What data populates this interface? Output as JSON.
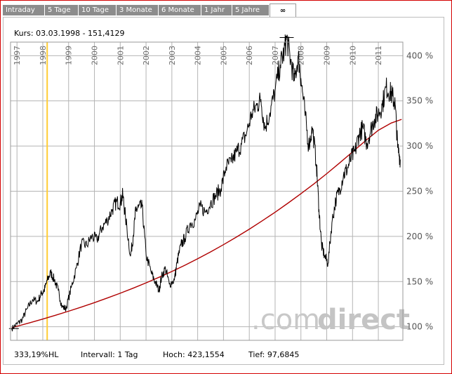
{
  "tabs": [
    {
      "label": "Intraday",
      "active": false
    },
    {
      "label": "5 Tage",
      "active": false
    },
    {
      "label": "10 Tage",
      "active": false
    },
    {
      "label": "3 Monate",
      "active": false
    },
    {
      "label": "6 Monate",
      "active": false
    },
    {
      "label": "1 Jahr",
      "active": false
    },
    {
      "label": "5 Jahre",
      "active": false
    },
    {
      "label": "∞",
      "active": true
    }
  ],
  "kurs_label": "Kurs: 03.03.1998 - 151,4129",
  "stats": {
    "performance": "333,19%HL",
    "intervall": "Intervall: 1 Tag",
    "hoch": "Hoch: 423,1554",
    "tief": "Tief: 97,6845"
  },
  "watermark": {
    "part1": ".com",
    "part2": "direct"
  },
  "colors": {
    "price_line": "#000000",
    "trend_line": "#b00000",
    "cursor_line": "#ffcc33",
    "grid": "#b4b4b4",
    "frame": "#d40000",
    "tab_bg": "#8c8c8c",
    "watermark": "#c8c8c8"
  },
  "chart_data": {
    "type": "line",
    "x_unit": "year",
    "year_labels": [
      "1997",
      "1998",
      "1999",
      "2000",
      "2001",
      "2002",
      "2003",
      "2004",
      "2005",
      "2006",
      "2007",
      "2008",
      "2009",
      "2010",
      "2011"
    ],
    "y_ticks": [
      {
        "value": 100,
        "label": "100 %"
      },
      {
        "value": 150,
        "label": "150 %"
      },
      {
        "value": 200,
        "label": "200 %"
      },
      {
        "value": 250,
        "label": "250 %"
      },
      {
        "value": 300,
        "label": "300 %"
      },
      {
        "value": 350,
        "label": "350 %"
      },
      {
        "value": 400,
        "label": "400 %"
      }
    ],
    "xlim": [
      1996.75,
      2011.95
    ],
    "ylim": [
      85,
      415
    ],
    "grid": true,
    "cursor_x": 1998.17,
    "series": [
      {
        "kind": "price",
        "x": [
          1996.8,
          1997.0,
          1997.2,
          1997.4,
          1997.6,
          1997.8,
          1997.95,
          1998.05,
          1998.17,
          1998.3,
          1998.45,
          1998.6,
          1998.75,
          1998.9,
          1999.1,
          1999.3,
          1999.5,
          1999.7,
          1999.9,
          2000.1,
          2000.3,
          2000.5,
          2000.7,
          2000.85,
          2001.0,
          2001.1,
          2001.2,
          2001.4,
          2001.5,
          2001.6,
          2001.7,
          2001.85,
          2002.0,
          2002.2,
          2002.35,
          2002.5,
          2002.6,
          2002.75,
          2002.9,
          2003.1,
          2003.2,
          2003.35,
          2003.5,
          2003.7,
          2003.9,
          2004.1,
          2004.3,
          2004.5,
          2004.7,
          2004.9,
          2005.1,
          2005.3,
          2005.5,
          2005.7,
          2005.9,
          2006.1,
          2006.3,
          2006.45,
          2006.6,
          2006.8,
          2007.0,
          2007.2,
          2007.35,
          2007.45,
          2007.6,
          2007.75,
          2007.9,
          2008.0,
          2008.15,
          2008.3,
          2008.45,
          2008.6,
          2008.7,
          2008.8,
          2008.92,
          2009.05,
          2009.2,
          2009.35,
          2009.5,
          2009.65,
          2009.8,
          2009.95,
          2010.1,
          2010.25,
          2010.4,
          2010.55,
          2010.7,
          2010.85,
          2011.0,
          2011.15,
          2011.3,
          2011.45,
          2011.55,
          2011.65,
          2011.75,
          2011.85
        ],
        "y": [
          98,
          103,
          108,
          120,
          130,
          128,
          137,
          140,
          151,
          160,
          152,
          140,
          122,
          120,
          143,
          165,
          192,
          190,
          200,
          196,
          210,
          218,
          230,
          238,
          237,
          246,
          222,
          178,
          200,
          228,
          232,
          233,
          180,
          160,
          150,
          140,
          155,
          165,
          147,
          152,
          171,
          190,
          198,
          214,
          218,
          233,
          227,
          237,
          245,
          253,
          277,
          282,
          293,
          302,
          315,
          336,
          345,
          352,
          320,
          337,
          361,
          390,
          404,
          420,
          395,
          372,
          400,
          375,
          338,
          300,
          320,
          280,
          230,
          190,
          178,
          170,
          215,
          240,
          252,
          268,
          275,
          287,
          294,
          313,
          320,
          303,
          317,
          330,
          336,
          345,
          365,
          360,
          355,
          346,
          298,
          285
        ]
      },
      {
        "kind": "trend",
        "x": [
          1996.8,
          1997.5,
          1998.0,
          1998.5,
          1999.0,
          1999.5,
          2000.0,
          2000.5,
          2001.0,
          2001.5,
          2002.0,
          2002.5,
          2003.0,
          2003.5,
          2004.0,
          2004.5,
          2005.0,
          2005.5,
          2006.0,
          2006.5,
          2007.0,
          2007.5,
          2008.0,
          2008.5,
          2009.0,
          2009.5,
          2010.0,
          2010.5,
          2011.0,
          2011.5,
          2011.9
        ],
        "y": [
          99,
          104.5,
          108.5,
          112.8,
          117.2,
          121.8,
          126.7,
          131.8,
          137.1,
          142.7,
          148.6,
          154.7,
          161.2,
          168.0,
          175.2,
          182.8,
          190.8,
          199.2,
          208.0,
          217.2,
          226.8,
          236.8,
          247.2,
          258.0,
          269.4,
          281.3,
          293.5,
          305.8,
          317.5,
          325.5,
          329.5
        ]
      }
    ]
  }
}
